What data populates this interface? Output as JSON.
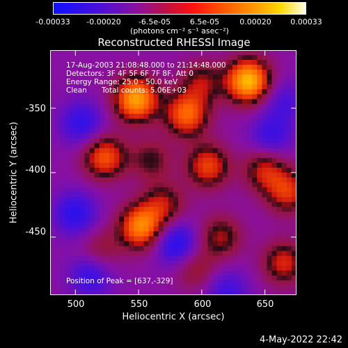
{
  "colorbar": {
    "ticks": [
      "-0.00033",
      "-0.00020",
      "-6.5e-05",
      "6.5e-05",
      "0.00020",
      "0.00033"
    ],
    "units": "(photons cm⁻² s⁻¹ asec⁻²)"
  },
  "chart_data": {
    "type": "heatmap",
    "title": "Reconstructed RHESSI Image",
    "xlabel": "Heliocentric X (arcsec)",
    "ylabel": "Heliocentric Y (arcsec)",
    "xlim": [
      480,
      675
    ],
    "ylim": [
      -495,
      -305
    ],
    "xticks": [
      "500",
      "550",
      "600",
      "650"
    ],
    "yticks": [
      "-350",
      "-400",
      "-450"
    ],
    "clim": [
      -0.00033,
      0.00033
    ],
    "annotations": {
      "time_range": "17-Aug-2003 21:08:48.000 to 21:14:48.000",
      "detectors": "Detectors: 3F 4F 5F 6F 7F 8F, Att 0",
      "energy_range": "Energy Range: 25.0 - 50.0 keV",
      "clean_label": "Clean",
      "total_counts": "Total counts: 5.06E+03",
      "peak": "Position of Peak = [637,-329]"
    },
    "hotspots": [
      {
        "x": 637,
        "y": -329,
        "value": 0.00033
      },
      {
        "x": 548,
        "y": -343,
        "value": 0.0003
      },
      {
        "x": 588,
        "y": -355,
        "value": 0.00022
      },
      {
        "x": 552,
        "y": -442,
        "value": 0.00026
      },
      {
        "x": 523,
        "y": -388,
        "value": 0.0002
      },
      {
        "x": 570,
        "y": -425,
        "value": 0.00012
      },
      {
        "x": 605,
        "y": -395,
        "value": 0.00018
      },
      {
        "x": 650,
        "y": -398,
        "value": 0.00014
      },
      {
        "x": 668,
        "y": -415,
        "value": 0.00016
      },
      {
        "x": 615,
        "y": -450,
        "value": 0.00012
      },
      {
        "x": 665,
        "y": -470,
        "value": 0.00015
      },
      {
        "x": 595,
        "y": -475,
        "value": 8e-05
      },
      {
        "x": 520,
        "y": -460,
        "value": 7e-05
      },
      {
        "x": 600,
        "y": -330,
        "value": 0.00011
      },
      {
        "x": 560,
        "y": -390,
        "value": 9e-05
      }
    ],
    "coldspots": [
      {
        "x": 500,
        "y": -432,
        "value": -0.00018
      },
      {
        "x": 512,
        "y": -480,
        "value": -0.00016
      },
      {
        "x": 580,
        "y": -455,
        "value": -0.0002
      },
      {
        "x": 505,
        "y": -362,
        "value": -0.00017
      },
      {
        "x": 655,
        "y": -372,
        "value": -0.00015
      },
      {
        "x": 620,
        "y": -492,
        "value": -0.00014
      },
      {
        "x": 665,
        "y": -345,
        "value": -0.00012
      }
    ]
  },
  "footer": {
    "date": "4-May-2022 22:42"
  }
}
